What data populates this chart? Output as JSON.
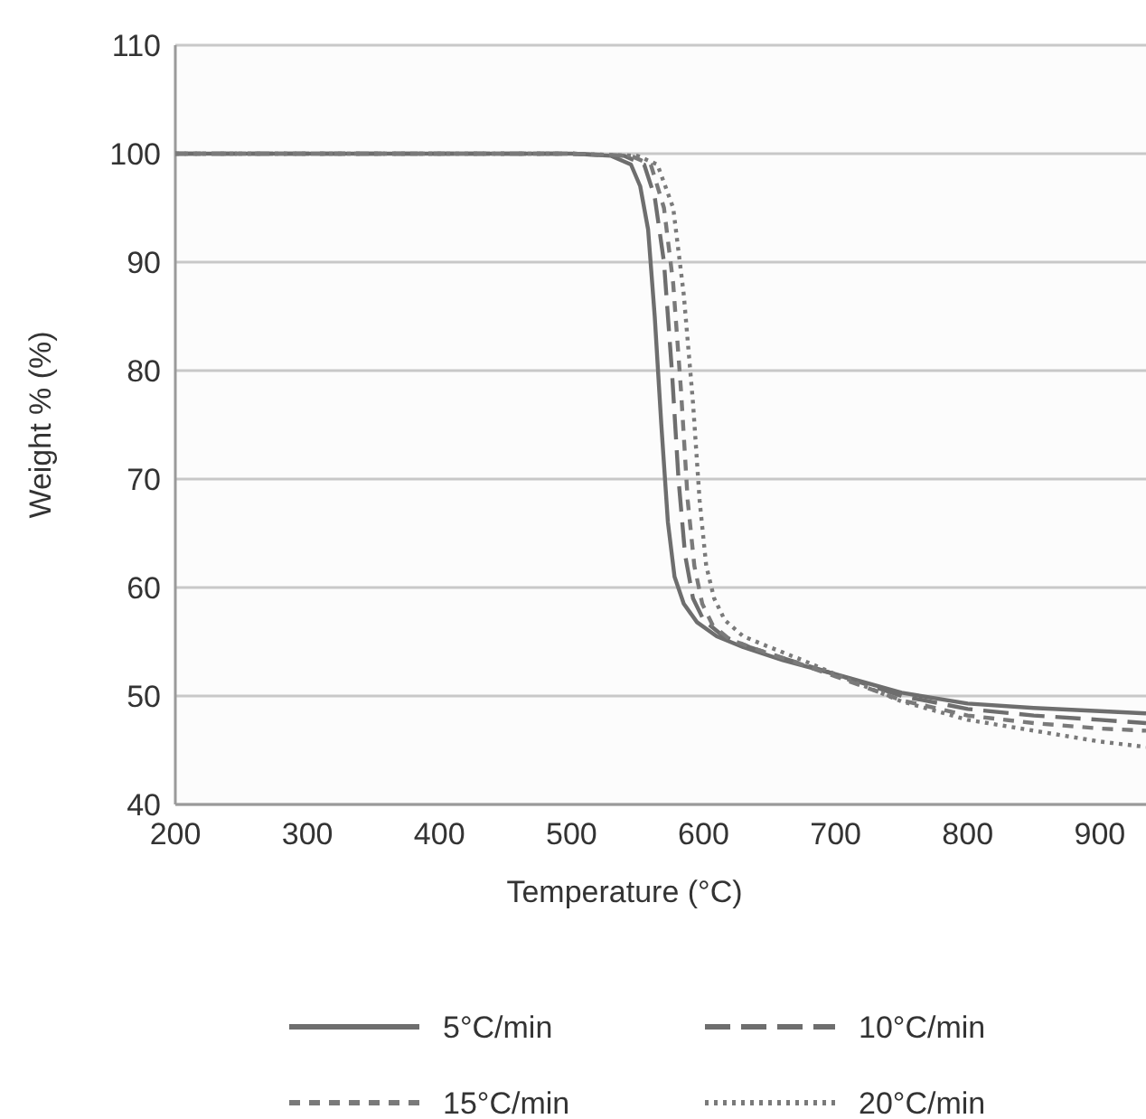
{
  "chart_data": {
    "type": "line",
    "xlabel": "Temperature (°C)",
    "ylabel": "Weight % (%)",
    "xlim": [
      200,
      935
    ],
    "ylim": [
      40,
      110
    ],
    "xticks": [
      200,
      300,
      400,
      500,
      600,
      700,
      800,
      900
    ],
    "yticks": [
      40,
      50,
      60,
      70,
      80,
      90,
      100,
      110
    ],
    "grid": "y",
    "legend": "bottom",
    "series": [
      {
        "name": "5°C/min",
        "color": "#6e6e6e",
        "line_style": "solid",
        "x": [
          200,
          300,
          400,
          500,
          530,
          545,
          552,
          558,
          563,
          568,
          573,
          578,
          585,
          595,
          610,
          630,
          660,
          700,
          750,
          800,
          850,
          900,
          935
        ],
        "values": [
          100,
          100,
          100,
          100,
          99.8,
          99,
          97,
          93,
          85,
          75,
          66,
          61,
          58.5,
          56.8,
          55.5,
          54.5,
          53.3,
          52,
          50.3,
          49.3,
          48.9,
          48.6,
          48.4
        ]
      },
      {
        "name": "10°C/min",
        "color": "#6e6e6e",
        "line_style": "dashed",
        "x": [
          200,
          300,
          400,
          500,
          540,
          555,
          563,
          570,
          576,
          581,
          586,
          592,
          600,
          615,
          635,
          660,
          700,
          750,
          800,
          850,
          900,
          935
        ],
        "values": [
          100,
          100,
          100,
          100,
          99.8,
          99,
          96,
          90,
          80,
          70,
          63,
          59,
          57,
          55.5,
          54.5,
          53.5,
          52,
          50,
          48.8,
          48.2,
          47.8,
          47.5
        ]
      },
      {
        "name": "15°C/min",
        "color": "#7a7a7a",
        "line_style": "dashed",
        "x": [
          200,
          300,
          400,
          500,
          545,
          560,
          570,
          577,
          583,
          588,
          593,
          599,
          607,
          620,
          640,
          665,
          700,
          750,
          800,
          850,
          900,
          935
        ],
        "values": [
          100,
          100,
          100,
          100,
          99.8,
          99,
          95,
          88,
          78,
          68,
          62,
          58.5,
          56.5,
          55.2,
          54.3,
          53.3,
          51.8,
          49.6,
          48.2,
          47.5,
          47,
          46.8
        ]
      },
      {
        "name": "20°C/min",
        "color": "#7a7a7a",
        "line_style": "dotted",
        "x": [
          200,
          300,
          400,
          500,
          550,
          565,
          577,
          585,
          592,
          597,
          602,
          608,
          616,
          630,
          650,
          675,
          700,
          750,
          800,
          850,
          900,
          935
        ],
        "values": [
          100,
          100,
          100,
          100,
          99.8,
          99,
          95,
          87,
          77,
          68,
          62,
          59,
          57,
          55.5,
          54.5,
          53.3,
          52,
          49.5,
          47.8,
          46.8,
          45.8,
          45.3
        ]
      }
    ]
  }
}
